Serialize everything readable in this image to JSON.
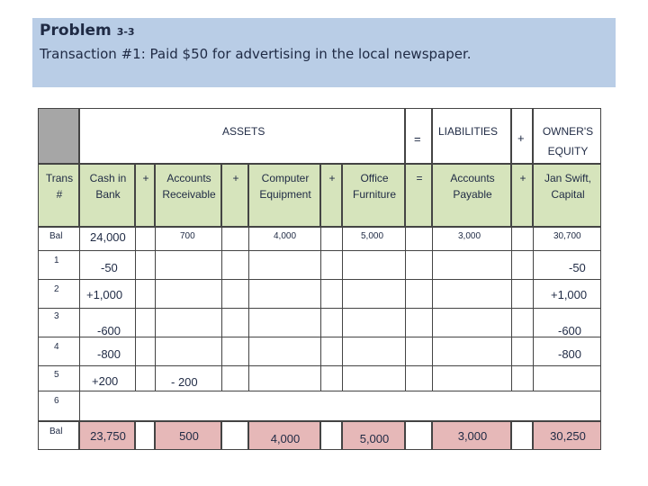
{
  "header": {
    "title": "Problem",
    "problem_num": "3-3",
    "subtitle": "Transaction #1:  Paid $50 for advertising in the local newspaper."
  },
  "equation": {
    "assets": "ASSETS",
    "equals": "=",
    "liabilities": "LIABILITIES",
    "plus": "+",
    "owners_equity_1": "OWNER'S",
    "owners_equity_2": "EQUITY"
  },
  "columns": {
    "trans_1": "Trans",
    "trans_2": "#",
    "cash_1": "Cash in",
    "cash_2": "Bank",
    "ar_1": "Accounts",
    "ar_2": "Receivable",
    "ce_1": "Computer",
    "ce_2": "Equipment",
    "of_1": "Office",
    "of_2": "Furniture",
    "ap_1": "Accounts",
    "ap_2": "Payable",
    "cap_1": "Jan Swift,",
    "cap_2": "Capital",
    "plus": "+",
    "equals": "="
  },
  "rows": {
    "bal": {
      "label": "Bal",
      "cash": "24,000",
      "ar": "700",
      "ce": "4,000",
      "of": "5,000",
      "ap": "3,000",
      "cap": "30,700"
    },
    "r1": {
      "label": "1",
      "cash": "-50",
      "cap": "-50"
    },
    "r2": {
      "label": "2",
      "cash": "+1,000",
      "cap": "+1,000"
    },
    "r3": {
      "label": "3",
      "cash": "-600",
      "cap": "-600"
    },
    "r4": {
      "label": "4",
      "cash": "-800",
      "cap": "-800"
    },
    "r5": {
      "label": "5",
      "cash": "+200",
      "ar": "- 200"
    },
    "r6": {
      "label": "6"
    },
    "end": {
      "label": "Bal",
      "cash": "23,750",
      "ar": "500",
      "ce": "4,000",
      "of": "5,000",
      "ap": "3,000",
      "cap": "30,250"
    }
  }
}
